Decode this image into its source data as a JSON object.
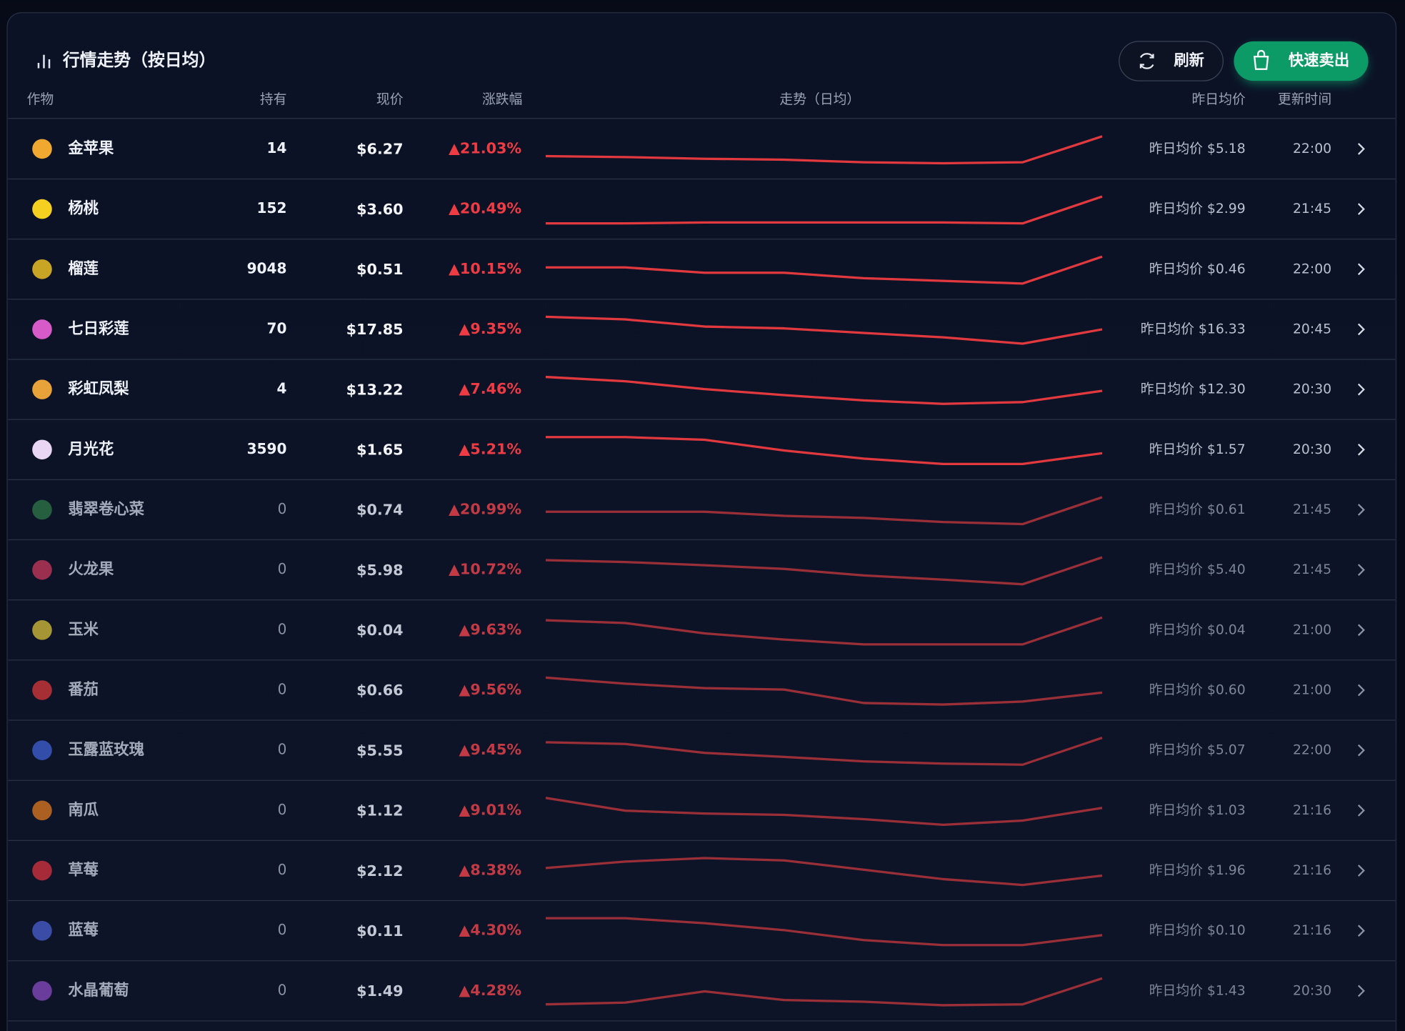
{
  "header": {
    "title": "行情走势（按日均）",
    "refresh": "刷新",
    "sell": "快速卖出"
  },
  "table": {
    "columns": [
      "作物",
      "持有",
      "现价",
      "涨跌幅",
      "走势（日均）",
      "昨日均价",
      "更新时间"
    ],
    "rows": [
      {
        "crop": "金苹果",
        "hold": "14",
        "price": "$6.27",
        "change": "▲21.03%",
        "trend": [
          5.44,
          5.4,
          5.33,
          5.29,
          5.18,
          5.14,
          5.18,
          6.27
        ],
        "yesterday": "昨日均价 $5.18",
        "time": "22:00"
      },
      {
        "crop": "杨桃",
        "hold": "152",
        "price": "$3.60",
        "change": "▲20.49%",
        "trend": [
          2.99,
          2.99,
          3.01,
          3.01,
          3.01,
          3.01,
          2.99,
          3.6
        ],
        "yesterday": "昨日均价 $2.99",
        "time": "21:45"
      },
      {
        "crop": "榴莲",
        "hold": "9048",
        "price": "$0.51",
        "change": "▲10.15%",
        "trend": [
          0.49,
          0.49,
          0.48,
          0.48,
          0.47,
          0.465,
          0.46,
          0.51
        ],
        "yesterday": "昨日均价 $0.46",
        "time": "22:00"
      },
      {
        "crop": "七日彩莲",
        "hold": "70",
        "price": "$17.85",
        "change": "▲9.35%",
        "trend": [
          19.18,
          18.9,
          18.14,
          17.95,
          17.47,
          17.0,
          16.33,
          17.85
        ],
        "yesterday": "昨日均价 $16.33",
        "time": "20:45"
      },
      {
        "crop": "彩虹凤梨",
        "hold": "4",
        "price": "$13.22",
        "change": "▲7.46%",
        "trend": [
          14.35,
          14.0,
          13.36,
          12.87,
          12.44,
          12.16,
          12.3,
          13.22
        ],
        "yesterday": "昨日均价 $12.30",
        "time": "20:30"
      },
      {
        "crop": "月光花",
        "hold": "3590",
        "price": "$1.65",
        "change": "▲5.21%",
        "trend": [
          1.77,
          1.77,
          1.75,
          1.67,
          1.61,
          1.57,
          1.57,
          1.65
        ],
        "yesterday": "昨日均价 $1.57",
        "time": "20:30"
      },
      {
        "crop": "翡翠卷心菜",
        "hold": "0",
        "price": "$0.74",
        "change": "▲20.99%",
        "trend": [
          0.67,
          0.67,
          0.67,
          0.65,
          0.64,
          0.62,
          0.61,
          0.74
        ],
        "yesterday": "昨日均价 $0.61",
        "time": "21:45"
      },
      {
        "crop": "火龙果",
        "hold": "0",
        "price": "$5.98",
        "change": "▲10.72%",
        "trend": [
          5.92,
          5.88,
          5.81,
          5.73,
          5.59,
          5.5,
          5.4,
          5.98
        ],
        "yesterday": "昨日均价 $5.40",
        "time": "21:45"
      },
      {
        "crop": "玉米",
        "hold": "0",
        "price": "$0.04",
        "change": "▲9.63%",
        "trend": [
          0.0435,
          0.0431,
          0.0416,
          0.0407,
          0.04,
          0.04,
          0.04,
          0.0439
        ],
        "yesterday": "昨日均价 $0.04",
        "time": "21:00"
      },
      {
        "crop": "番茄",
        "hold": "0",
        "price": "$0.66",
        "change": "▲9.56%",
        "trend": [
          0.76,
          0.72,
          0.69,
          0.68,
          0.59,
          0.58,
          0.6,
          0.66
        ],
        "yesterday": "昨日均价 $0.60",
        "time": "21:00"
      },
      {
        "crop": "玉露蓝玫瑰",
        "hold": "0",
        "price": "$5.55",
        "change": "▲9.45%",
        "trend": [
          5.47,
          5.44,
          5.28,
          5.21,
          5.13,
          5.09,
          5.07,
          5.55
        ],
        "yesterday": "昨日均价 $5.07",
        "time": "22:00"
      },
      {
        "crop": "南瓜",
        "hold": "0",
        "price": "$1.12",
        "change": "▲9.01%",
        "trend": [
          1.19,
          1.1,
          1.08,
          1.07,
          1.04,
          1.0,
          1.03,
          1.12
        ],
        "yesterday": "昨日均价 $1.03",
        "time": "21:16"
      },
      {
        "crop": "草莓",
        "hold": "0",
        "price": "$2.12",
        "change": "▲8.38%",
        "trend": [
          2.25,
          2.36,
          2.42,
          2.38,
          2.22,
          2.06,
          1.96,
          2.12
        ],
        "yesterday": "昨日均价 $1.96",
        "time": "21:16"
      },
      {
        "crop": "蓝莓",
        "hold": "0",
        "price": "$0.11",
        "change": "▲4.30%",
        "trend": [
          0.127,
          0.127,
          0.122,
          0.115,
          0.105,
          0.1,
          0.1,
          0.11
        ],
        "yesterday": "昨日均价 $0.10",
        "time": "21:16"
      },
      {
        "crop": "水晶葡萄",
        "hold": "0",
        "price": "$1.49",
        "change": "▲4.28%",
        "trend": [
          1.43,
          1.434,
          1.46,
          1.44,
          1.436,
          1.428,
          1.43,
          1.49
        ],
        "yesterday": "昨日均价 $1.43",
        "time": "20:30"
      }
    ]
  }
}
